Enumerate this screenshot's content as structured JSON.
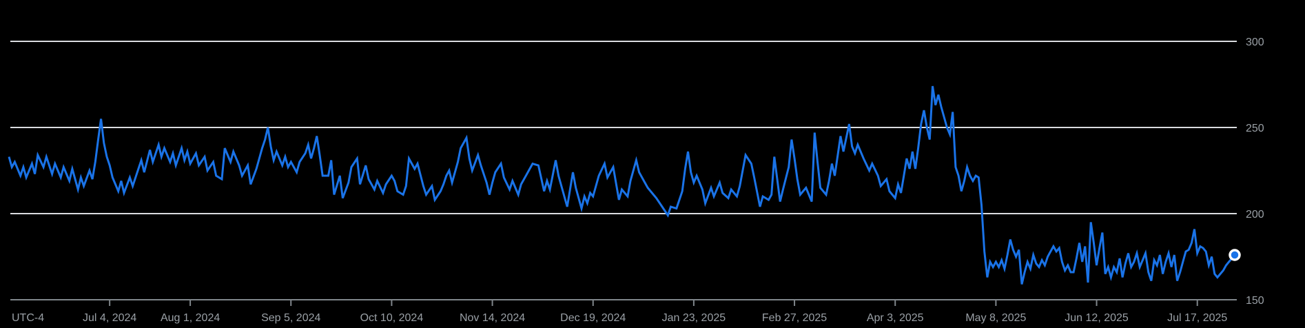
{
  "chart_data": {
    "type": "line",
    "title": "",
    "timezone_label": "UTC-4",
    "background": "#000000",
    "line_color": "#1a73e8",
    "grid_color": "#dadce0",
    "axis_color": "#80868b",
    "label_color": "#9aa0a6",
    "marker": {
      "fill": "#1a73e8",
      "ring": "#ffffff"
    },
    "grid": true,
    "legend": "none",
    "y_axis": {
      "side": "right",
      "range": [
        150,
        300
      ],
      "ticks": [
        150,
        200,
        250,
        300
      ]
    },
    "x_axis": {
      "start_date": "2024-05-30",
      "end_date": "2025-07-30",
      "ticks": [
        {
          "date": "2024-07-04",
          "label": "Jul 4, 2024"
        },
        {
          "date": "2024-08-01",
          "label": "Aug 1, 2024"
        },
        {
          "date": "2024-09-05",
          "label": "Sep 5, 2024"
        },
        {
          "date": "2024-10-10",
          "label": "Oct 10, 2024"
        },
        {
          "date": "2024-11-14",
          "label": "Nov 14, 2024"
        },
        {
          "date": "2024-12-19",
          "label": "Dec 19, 2024"
        },
        {
          "date": "2025-01-23",
          "label": "Jan 23, 2025"
        },
        {
          "date": "2025-02-27",
          "label": "Feb 27, 2025"
        },
        {
          "date": "2025-04-03",
          "label": "Apr 3, 2025"
        },
        {
          "date": "2025-05-08",
          "label": "May 8, 2025"
        },
        {
          "date": "2025-06-12",
          "label": "Jun 12, 2025"
        },
        {
          "date": "2025-07-17",
          "label": "Jul 17, 2025"
        }
      ]
    },
    "last_value": 176,
    "points": [
      [
        0,
        233
      ],
      [
        1,
        227
      ],
      [
        2,
        230
      ],
      [
        4,
        222
      ],
      [
        5,
        227
      ],
      [
        6,
        221
      ],
      [
        8,
        229
      ],
      [
        9,
        223
      ],
      [
        10,
        234
      ],
      [
        12,
        227
      ],
      [
        13,
        233
      ],
      [
        15,
        223
      ],
      [
        16,
        229
      ],
      [
        18,
        221
      ],
      [
        19,
        227
      ],
      [
        21,
        219
      ],
      [
        22,
        226
      ],
      [
        24,
        214
      ],
      [
        25,
        221
      ],
      [
        26,
        216
      ],
      [
        28,
        225
      ],
      [
        29,
        220
      ],
      [
        30,
        230
      ],
      [
        31,
        243
      ],
      [
        32,
        255
      ],
      [
        33,
        241
      ],
      [
        34,
        233
      ],
      [
        35,
        228
      ],
      [
        36,
        221
      ],
      [
        38,
        213
      ],
      [
        39,
        219
      ],
      [
        40,
        212
      ],
      [
        42,
        221
      ],
      [
        43,
        216
      ],
      [
        45,
        226
      ],
      [
        46,
        231
      ],
      [
        47,
        224
      ],
      [
        49,
        237
      ],
      [
        50,
        230
      ],
      [
        52,
        240
      ],
      [
        53,
        233
      ],
      [
        54,
        238
      ],
      [
        56,
        230
      ],
      [
        57,
        235
      ],
      [
        58,
        228
      ],
      [
        60,
        238
      ],
      [
        61,
        231
      ],
      [
        62,
        236
      ],
      [
        63,
        229
      ],
      [
        65,
        235
      ],
      [
        66,
        228
      ],
      [
        68,
        233
      ],
      [
        69,
        225
      ],
      [
        71,
        230
      ],
      [
        72,
        222
      ],
      [
        74,
        220
      ],
      [
        75,
        238
      ],
      [
        77,
        230
      ],
      [
        78,
        236
      ],
      [
        80,
        228
      ],
      [
        81,
        222
      ],
      [
        83,
        228
      ],
      [
        84,
        217
      ],
      [
        86,
        226
      ],
      [
        87,
        232
      ],
      [
        88,
        238
      ],
      [
        89,
        243
      ],
      [
        90,
        250
      ],
      [
        91,
        239
      ],
      [
        92,
        231
      ],
      [
        93,
        236
      ],
      [
        95,
        228
      ],
      [
        96,
        233
      ],
      [
        97,
        227
      ],
      [
        98,
        230
      ],
      [
        100,
        224
      ],
      [
        101,
        230
      ],
      [
        103,
        235
      ],
      [
        104,
        240
      ],
      [
        105,
        232
      ],
      [
        106,
        238
      ],
      [
        107,
        245
      ],
      [
        108,
        234
      ],
      [
        109,
        222
      ],
      [
        111,
        222
      ],
      [
        112,
        231
      ],
      [
        113,
        211
      ],
      [
        115,
        222
      ],
      [
        116,
        209
      ],
      [
        118,
        218
      ],
      [
        119,
        227
      ],
      [
        121,
        232
      ],
      [
        122,
        217
      ],
      [
        124,
        228
      ],
      [
        125,
        220
      ],
      [
        127,
        214
      ],
      [
        128,
        219
      ],
      [
        130,
        212
      ],
      [
        131,
        217
      ],
      [
        133,
        222
      ],
      [
        134,
        219
      ],
      [
        135,
        213
      ],
      [
        137,
        211
      ],
      [
        138,
        216
      ],
      [
        139,
        232
      ],
      [
        141,
        226
      ],
      [
        142,
        229
      ],
      [
        144,
        216
      ],
      [
        145,
        211
      ],
      [
        147,
        216
      ],
      [
        148,
        208
      ],
      [
        150,
        213
      ],
      [
        151,
        217
      ],
      [
        152,
        222
      ],
      [
        153,
        225
      ],
      [
        154,
        218
      ],
      [
        156,
        230
      ],
      [
        157,
        238
      ],
      [
        159,
        244
      ],
      [
        160,
        232
      ],
      [
        161,
        225
      ],
      [
        163,
        234
      ],
      [
        164,
        228
      ],
      [
        166,
        218
      ],
      [
        167,
        211
      ],
      [
        168,
        218
      ],
      [
        169,
        224
      ],
      [
        171,
        229
      ],
      [
        172,
        221
      ],
      [
        174,
        214
      ],
      [
        175,
        219
      ],
      [
        177,
        211
      ],
      [
        178,
        217
      ],
      [
        180,
        223
      ],
      [
        182,
        229
      ],
      [
        184,
        228
      ],
      [
        186,
        213
      ],
      [
        187,
        219
      ],
      [
        188,
        214
      ],
      [
        190,
        231
      ],
      [
        191,
        222
      ],
      [
        192,
        216
      ],
      [
        194,
        204
      ],
      [
        196,
        224
      ],
      [
        197,
        215
      ],
      [
        199,
        203
      ],
      [
        200,
        210
      ],
      [
        201,
        206
      ],
      [
        202,
        212
      ],
      [
        203,
        210
      ],
      [
        205,
        222
      ],
      [
        207,
        229
      ],
      [
        208,
        221
      ],
      [
        210,
        227
      ],
      [
        212,
        208
      ],
      [
        213,
        214
      ],
      [
        215,
        210
      ],
      [
        216,
        219
      ],
      [
        218,
        231
      ],
      [
        219,
        224
      ],
      [
        221,
        218
      ],
      [
        222,
        215
      ],
      [
        224,
        211
      ],
      [
        225,
        209
      ],
      [
        227,
        204
      ],
      [
        229,
        199
      ],
      [
        230,
        204
      ],
      [
        232,
        203
      ],
      [
        234,
        213
      ],
      [
        235,
        226
      ],
      [
        236,
        236
      ],
      [
        237,
        224
      ],
      [
        238,
        218
      ],
      [
        239,
        222
      ],
      [
        241,
        214
      ],
      [
        242,
        206
      ],
      [
        244,
        215
      ],
      [
        245,
        210
      ],
      [
        247,
        218
      ],
      [
        248,
        212
      ],
      [
        250,
        209
      ],
      [
        251,
        214
      ],
      [
        253,
        210
      ],
      [
        254,
        216
      ],
      [
        256,
        234
      ],
      [
        258,
        229
      ],
      [
        259,
        221
      ],
      [
        261,
        204
      ],
      [
        262,
        210
      ],
      [
        264,
        208
      ],
      [
        265,
        211
      ],
      [
        266,
        233
      ],
      [
        268,
        207
      ],
      [
        269,
        214
      ],
      [
        271,
        227
      ],
      [
        272,
        243
      ],
      [
        273,
        232
      ],
      [
        274,
        220
      ],
      [
        275,
        211
      ],
      [
        277,
        215
      ],
      [
        279,
        207
      ],
      [
        280,
        247
      ],
      [
        281,
        230
      ],
      [
        282,
        215
      ],
      [
        284,
        211
      ],
      [
        285,
        219
      ],
      [
        286,
        229
      ],
      [
        287,
        222
      ],
      [
        289,
        245
      ],
      [
        290,
        236
      ],
      [
        292,
        252
      ],
      [
        293,
        239
      ],
      [
        294,
        235
      ],
      [
        295,
        240
      ],
      [
        297,
        232
      ],
      [
        299,
        225
      ],
      [
        300,
        229
      ],
      [
        302,
        222
      ],
      [
        303,
        216
      ],
      [
        305,
        220
      ],
      [
        306,
        213
      ],
      [
        308,
        209
      ],
      [
        309,
        217
      ],
      [
        310,
        212
      ],
      [
        311,
        222
      ],
      [
        312,
        232
      ],
      [
        313,
        226
      ],
      [
        314,
        236
      ],
      [
        315,
        226
      ],
      [
        316,
        238
      ],
      [
        317,
        252
      ],
      [
        318,
        260
      ],
      [
        319,
        250
      ],
      [
        320,
        243
      ],
      [
        321,
        274
      ],
      [
        322,
        263
      ],
      [
        323,
        269
      ],
      [
        324,
        262
      ],
      [
        325,
        256
      ],
      [
        326,
        250
      ],
      [
        327,
        246
      ],
      [
        328,
        259
      ],
      [
        329,
        227
      ],
      [
        330,
        222
      ],
      [
        331,
        213
      ],
      [
        332,
        219
      ],
      [
        333,
        227
      ],
      [
        334,
        222
      ],
      [
        335,
        219
      ],
      [
        336,
        222
      ],
      [
        337,
        221
      ],
      [
        338,
        205
      ],
      [
        339,
        178
      ],
      [
        340,
        163
      ],
      [
        341,
        172
      ],
      [
        342,
        169
      ],
      [
        343,
        172
      ],
      [
        344,
        169
      ],
      [
        345,
        173
      ],
      [
        346,
        168
      ],
      [
        347,
        176
      ],
      [
        348,
        185
      ],
      [
        349,
        179
      ],
      [
        350,
        175
      ],
      [
        351,
        179
      ],
      [
        352,
        159
      ],
      [
        353,
        166
      ],
      [
        354,
        172
      ],
      [
        355,
        168
      ],
      [
        356,
        176
      ],
      [
        357,
        171
      ],
      [
        358,
        169
      ],
      [
        359,
        173
      ],
      [
        360,
        170
      ],
      [
        361,
        175
      ],
      [
        362,
        178
      ],
      [
        363,
        181
      ],
      [
        364,
        178
      ],
      [
        365,
        180
      ],
      [
        366,
        172
      ],
      [
        367,
        167
      ],
      [
        368,
        170
      ],
      [
        369,
        166
      ],
      [
        370,
        166
      ],
      [
        371,
        174
      ],
      [
        372,
        183
      ],
      [
        373,
        172
      ],
      [
        374,
        181
      ],
      [
        375,
        160
      ],
      [
        376,
        195
      ],
      [
        377,
        183
      ],
      [
        378,
        170
      ],
      [
        379,
        180
      ],
      [
        380,
        189
      ],
      [
        381,
        165
      ],
      [
        382,
        169
      ],
      [
        383,
        163
      ],
      [
        384,
        169
      ],
      [
        385,
        166
      ],
      [
        386,
        174
      ],
      [
        387,
        163
      ],
      [
        388,
        171
      ],
      [
        389,
        177
      ],
      [
        390,
        169
      ],
      [
        391,
        172
      ],
      [
        392,
        177
      ],
      [
        393,
        169
      ],
      [
        394,
        173
      ],
      [
        395,
        177
      ],
      [
        396,
        166
      ],
      [
        397,
        161
      ],
      [
        398,
        173
      ],
      [
        399,
        170
      ],
      [
        400,
        176
      ],
      [
        401,
        165
      ],
      [
        402,
        172
      ],
      [
        403,
        177
      ],
      [
        404,
        169
      ],
      [
        405,
        176
      ],
      [
        406,
        161
      ],
      [
        407,
        166
      ],
      [
        408,
        172
      ],
      [
        409,
        178
      ],
      [
        410,
        179
      ],
      [
        411,
        183
      ],
      [
        412,
        191
      ],
      [
        413,
        177
      ],
      [
        414,
        181
      ],
      [
        415,
        180
      ],
      [
        416,
        178
      ],
      [
        417,
        170
      ],
      [
        418,
        175
      ],
      [
        419,
        165
      ],
      [
        420,
        163
      ],
      [
        421,
        165
      ],
      [
        422,
        167
      ],
      [
        423,
        170
      ],
      [
        424,
        172
      ],
      [
        425,
        174
      ],
      [
        426,
        176
      ]
    ]
  }
}
